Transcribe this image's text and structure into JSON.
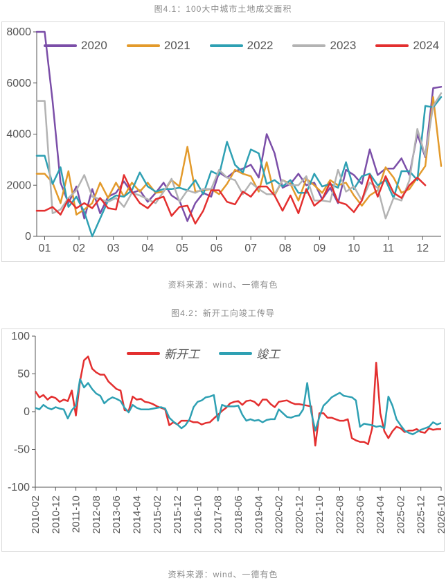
{
  "chart1": {
    "title": "图4.1：100大中城市土地成交面积",
    "source": "资料来源：wind、一德有色",
    "type": "line",
    "legend_fontsize": 17,
    "axis_fontsize": 16,
    "background_color": "#ffffff",
    "border_color": "#d9d9d9",
    "line_width": 2.5,
    "ylim": [
      0,
      8000
    ],
    "ytick_step": 2000,
    "xlabels": [
      "01",
      "02",
      "03",
      "04",
      "05",
      "06",
      "07",
      "08",
      "09",
      "10",
      "11",
      "12"
    ],
    "series": [
      {
        "name": "2020",
        "color": "#7b4ea8",
        "values": [
          8000,
          8000,
          5300,
          2100,
          1300,
          1950,
          700,
          1850,
          900,
          1550,
          1700,
          2150,
          1700,
          1800,
          1350,
          1700,
          2100,
          1600,
          1400,
          600,
          1300,
          1700,
          1550,
          2500,
          2300,
          2550,
          2650,
          2800,
          2300,
          4000,
          3250,
          1900,
          2050,
          2450,
          2000,
          2100,
          1450,
          1900,
          1300,
          2600,
          2400,
          2050,
          3400,
          2400,
          2650,
          2650,
          3050,
          2400,
          4000,
          3100,
          5800,
          5850
        ]
      },
      {
        "name": "2021",
        "color": "#e39a2b",
        "values": [
          2450,
          2450,
          2100,
          1300,
          2550,
          850,
          1050,
          1300,
          2100,
          1500,
          2100,
          1550,
          2100,
          1750,
          2100,
          1700,
          1750,
          2200,
          1950,
          3500,
          1750,
          1800,
          1850,
          1650,
          2050,
          2600,
          2450,
          2350,
          1750,
          2900,
          1600,
          2200,
          2050,
          1400,
          2250,
          2000,
          1700,
          2200,
          2000,
          2100,
          1600,
          1200,
          1600,
          1800,
          2700,
          2300,
          1700,
          1850,
          2300,
          2750,
          5450,
          2750
        ]
      },
      {
        "name": "2022",
        "color": "#2ea0b3",
        "values": [
          3150,
          3150,
          2050,
          2700,
          1150,
          1550,
          950,
          0,
          700,
          1400,
          1600,
          1550,
          1800,
          2500,
          1950,
          1750,
          1850,
          1850,
          1900,
          1800,
          2200,
          1650,
          2550,
          2400,
          3700,
          2800,
          2500,
          3400,
          3250,
          2050,
          2200,
          1950,
          2200,
          1700,
          1700,
          2450,
          1950,
          2050,
          1900,
          2900,
          1850,
          2350,
          2450,
          2000,
          2200,
          1500,
          2550,
          2550,
          2200,
          5100,
          5050,
          5450
        ]
      },
      {
        "name": "2023",
        "color": "#b3b3b3",
        "values": [
          5300,
          5300,
          900,
          1050,
          1500,
          1800,
          2400,
          1550,
          1450,
          1350,
          1500,
          1150,
          1700,
          1600,
          1450,
          1300,
          1750,
          2250,
          1350,
          1800,
          1700,
          1850,
          1850,
          2600,
          2300,
          2200,
          1650,
          2100,
          1850,
          1650,
          1650,
          2200,
          2000,
          2000,
          2350,
          1400,
          1400,
          1350,
          2600,
          1750,
          1950,
          1400,
          2100,
          1900,
          700,
          1500,
          1400,
          2200,
          4200,
          3150,
          5100,
          5600
        ]
      },
      {
        "name": "2024",
        "color": "#e32f2f",
        "values": [
          1000,
          1000,
          1150,
          850,
          1450,
          1100,
          1300,
          1100,
          1500,
          1100,
          1050,
          2400,
          1750,
          1300,
          1100,
          1450,
          1550,
          800,
          1150,
          1200,
          500,
          1000,
          1800,
          1800,
          1350,
          1250,
          1750,
          1550,
          1950,
          1950,
          1600,
          1000,
          1600,
          900,
          1850,
          1200,
          1450,
          2100,
          1350,
          1250,
          950,
          1400,
          2400,
          1550,
          2350,
          1700,
          1500,
          2000,
          2300,
          2000,
          null,
          null
        ]
      }
    ]
  },
  "chart2": {
    "title": "图4.2：新开工向竣工传导",
    "source": "资料来源：wind、一德有色",
    "type": "line",
    "legend_fontsize": 17,
    "axis_fontsize": 16,
    "background_color": "#ffffff",
    "border_color": "#d9d9d9",
    "line_width": 2.5,
    "ylim": [
      -100,
      100
    ],
    "ytick_step": 50,
    "legend_font_style": "italic",
    "xlabels": [
      "2010-02",
      "2010-12",
      "2011-10",
      "2012-08",
      "2013-06",
      "2014-04",
      "2015-02",
      "2015-12",
      "2016-10",
      "2017-08",
      "2018-06",
      "2019-04",
      "2020-02",
      "2020-12",
      "2021-10",
      "2022-08",
      "2023-06",
      "2024-04",
      "2025-02",
      "2025-12",
      "2026-10"
    ],
    "series": [
      {
        "name": "新开工",
        "color": "#e32f2f",
        "label": "新开工"
      },
      {
        "name": "竣工",
        "color": "#2ea0b3",
        "label": "竣工"
      }
    ],
    "data": {
      "n": 101,
      "新开工": [
        27,
        19,
        22,
        16,
        20,
        18,
        13,
        16,
        14,
        28,
        -5,
        40,
        68,
        73,
        57,
        52,
        49,
        49,
        40,
        35,
        30,
        28,
        2,
        1,
        20,
        16,
        17,
        13,
        12,
        10,
        7,
        5,
        3,
        -18,
        -14,
        -17,
        -12,
        -12,
        -12,
        -14,
        -14,
        -17,
        -15,
        -14,
        -9,
        -4,
        1,
        5,
        11,
        13,
        14,
        9,
        14,
        15,
        13,
        8,
        16,
        16,
        10,
        6,
        13,
        14,
        15,
        12,
        10,
        10,
        9,
        8,
        7,
        -45,
        -2,
        -2,
        -8,
        -8,
        -10,
        -12,
        -12,
        -10,
        -35,
        -38,
        -40,
        -40,
        -43,
        -22,
        65,
        -2,
        -26,
        -35,
        -26,
        -20,
        -22,
        -27,
        -25,
        -25,
        -23,
        -27,
        -28,
        -22,
        -24,
        -23,
        -23
      ],
      "竣工": [
        5,
        3,
        9,
        5,
        3,
        6,
        4,
        3,
        -9,
        2,
        8,
        43,
        32,
        38,
        30,
        24,
        21,
        11,
        16,
        19,
        17,
        14,
        5,
        -1,
        9,
        5,
        3,
        3,
        3,
        4,
        5,
        6,
        4,
        -8,
        -13,
        -17,
        -22,
        -18,
        -10,
        6,
        13,
        15,
        19,
        20,
        22,
        -12,
        9,
        7,
        7,
        7,
        8,
        -4,
        -12,
        -10,
        -12,
        -11,
        -14,
        -11,
        -10,
        -10,
        3,
        -2,
        -7,
        -8,
        -6,
        -5,
        3,
        38,
        -1,
        -25,
        -7,
        8,
        13,
        19,
        22,
        25,
        21,
        20,
        19,
        15,
        -20,
        -16,
        -17,
        -18,
        -20,
        -19,
        -22,
        20,
        8,
        -10,
        -18,
        -25,
        -28,
        -30,
        -27,
        -24,
        -22,
        -20,
        -14,
        -17,
        -15
      ]
    }
  }
}
